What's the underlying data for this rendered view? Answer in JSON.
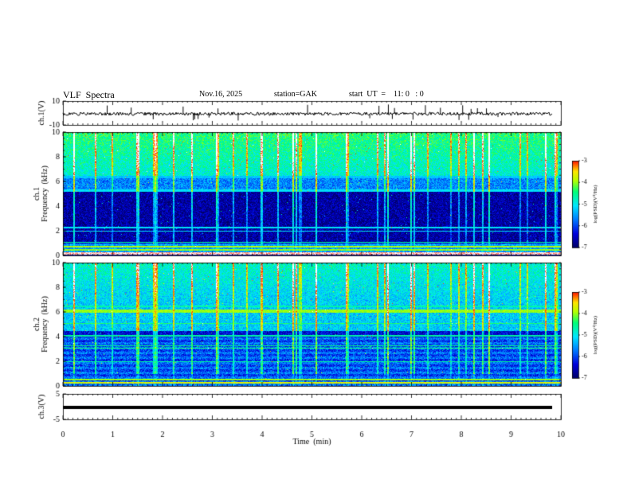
{
  "header": {
    "title": "VLF  Spectra",
    "date": "Nov.16, 2025",
    "station": "station=GAK",
    "start": "start  UT  =    11: 0   : 0"
  },
  "chart_data": [
    {
      "type": "line",
      "panel": "ch1-waveform",
      "ylabel": "ch.1(V)",
      "ylim": [
        -10,
        10
      ],
      "yticks": [
        "10",
        "-10"
      ],
      "xlim": [
        0,
        10
      ]
    },
    {
      "type": "heatmap",
      "panel": "ch1-spectrogram",
      "ylabel_top": "ch.1",
      "ylabel": "Frequency  (kHz)",
      "ylim": [
        0,
        10
      ],
      "yticks": [
        "0",
        "2",
        "4",
        "6",
        "8",
        "10"
      ],
      "xlim": [
        0,
        10
      ],
      "colorbar": {
        "label": "log(PSD)(V²/Hz)",
        "range": [
          -7,
          -3
        ],
        "ticks": [
          "-3",
          "-4",
          "-5",
          "-6",
          "-7"
        ]
      }
    },
    {
      "type": "heatmap",
      "panel": "ch2-spectrogram",
      "ylabel_top": "ch.2",
      "ylabel": "Frequency  (kHz)",
      "ylim": [
        0,
        10
      ],
      "yticks": [
        "0",
        "2",
        "4",
        "6",
        "8",
        "10"
      ],
      "xlim": [
        0,
        10
      ],
      "colorbar": {
        "label": "log(PSD)(V²/Hz)",
        "range": [
          -7,
          -3
        ],
        "ticks": [
          "-3",
          "-4",
          "-5",
          "-6",
          "-7"
        ]
      }
    },
    {
      "type": "line",
      "panel": "ch3-waveform",
      "ylabel": "ch.3(V)",
      "ylim": [
        -5,
        5
      ],
      "yticks": [
        "5",
        "-5"
      ],
      "xlim": [
        0,
        10
      ]
    }
  ],
  "xaxis": {
    "label": "Time  (min)",
    "ticks": [
      "0",
      "1",
      "2",
      "3",
      "4",
      "5",
      "6",
      "7",
      "8",
      "9",
      "10"
    ]
  },
  "colors": {
    "axis": "#000000",
    "background": "#ffffff",
    "colormap": [
      "#000070",
      "#0000ff",
      "#00c8ff",
      "#00ff80",
      "#ffff00",
      "#ff0000",
      "#ffffff"
    ]
  }
}
